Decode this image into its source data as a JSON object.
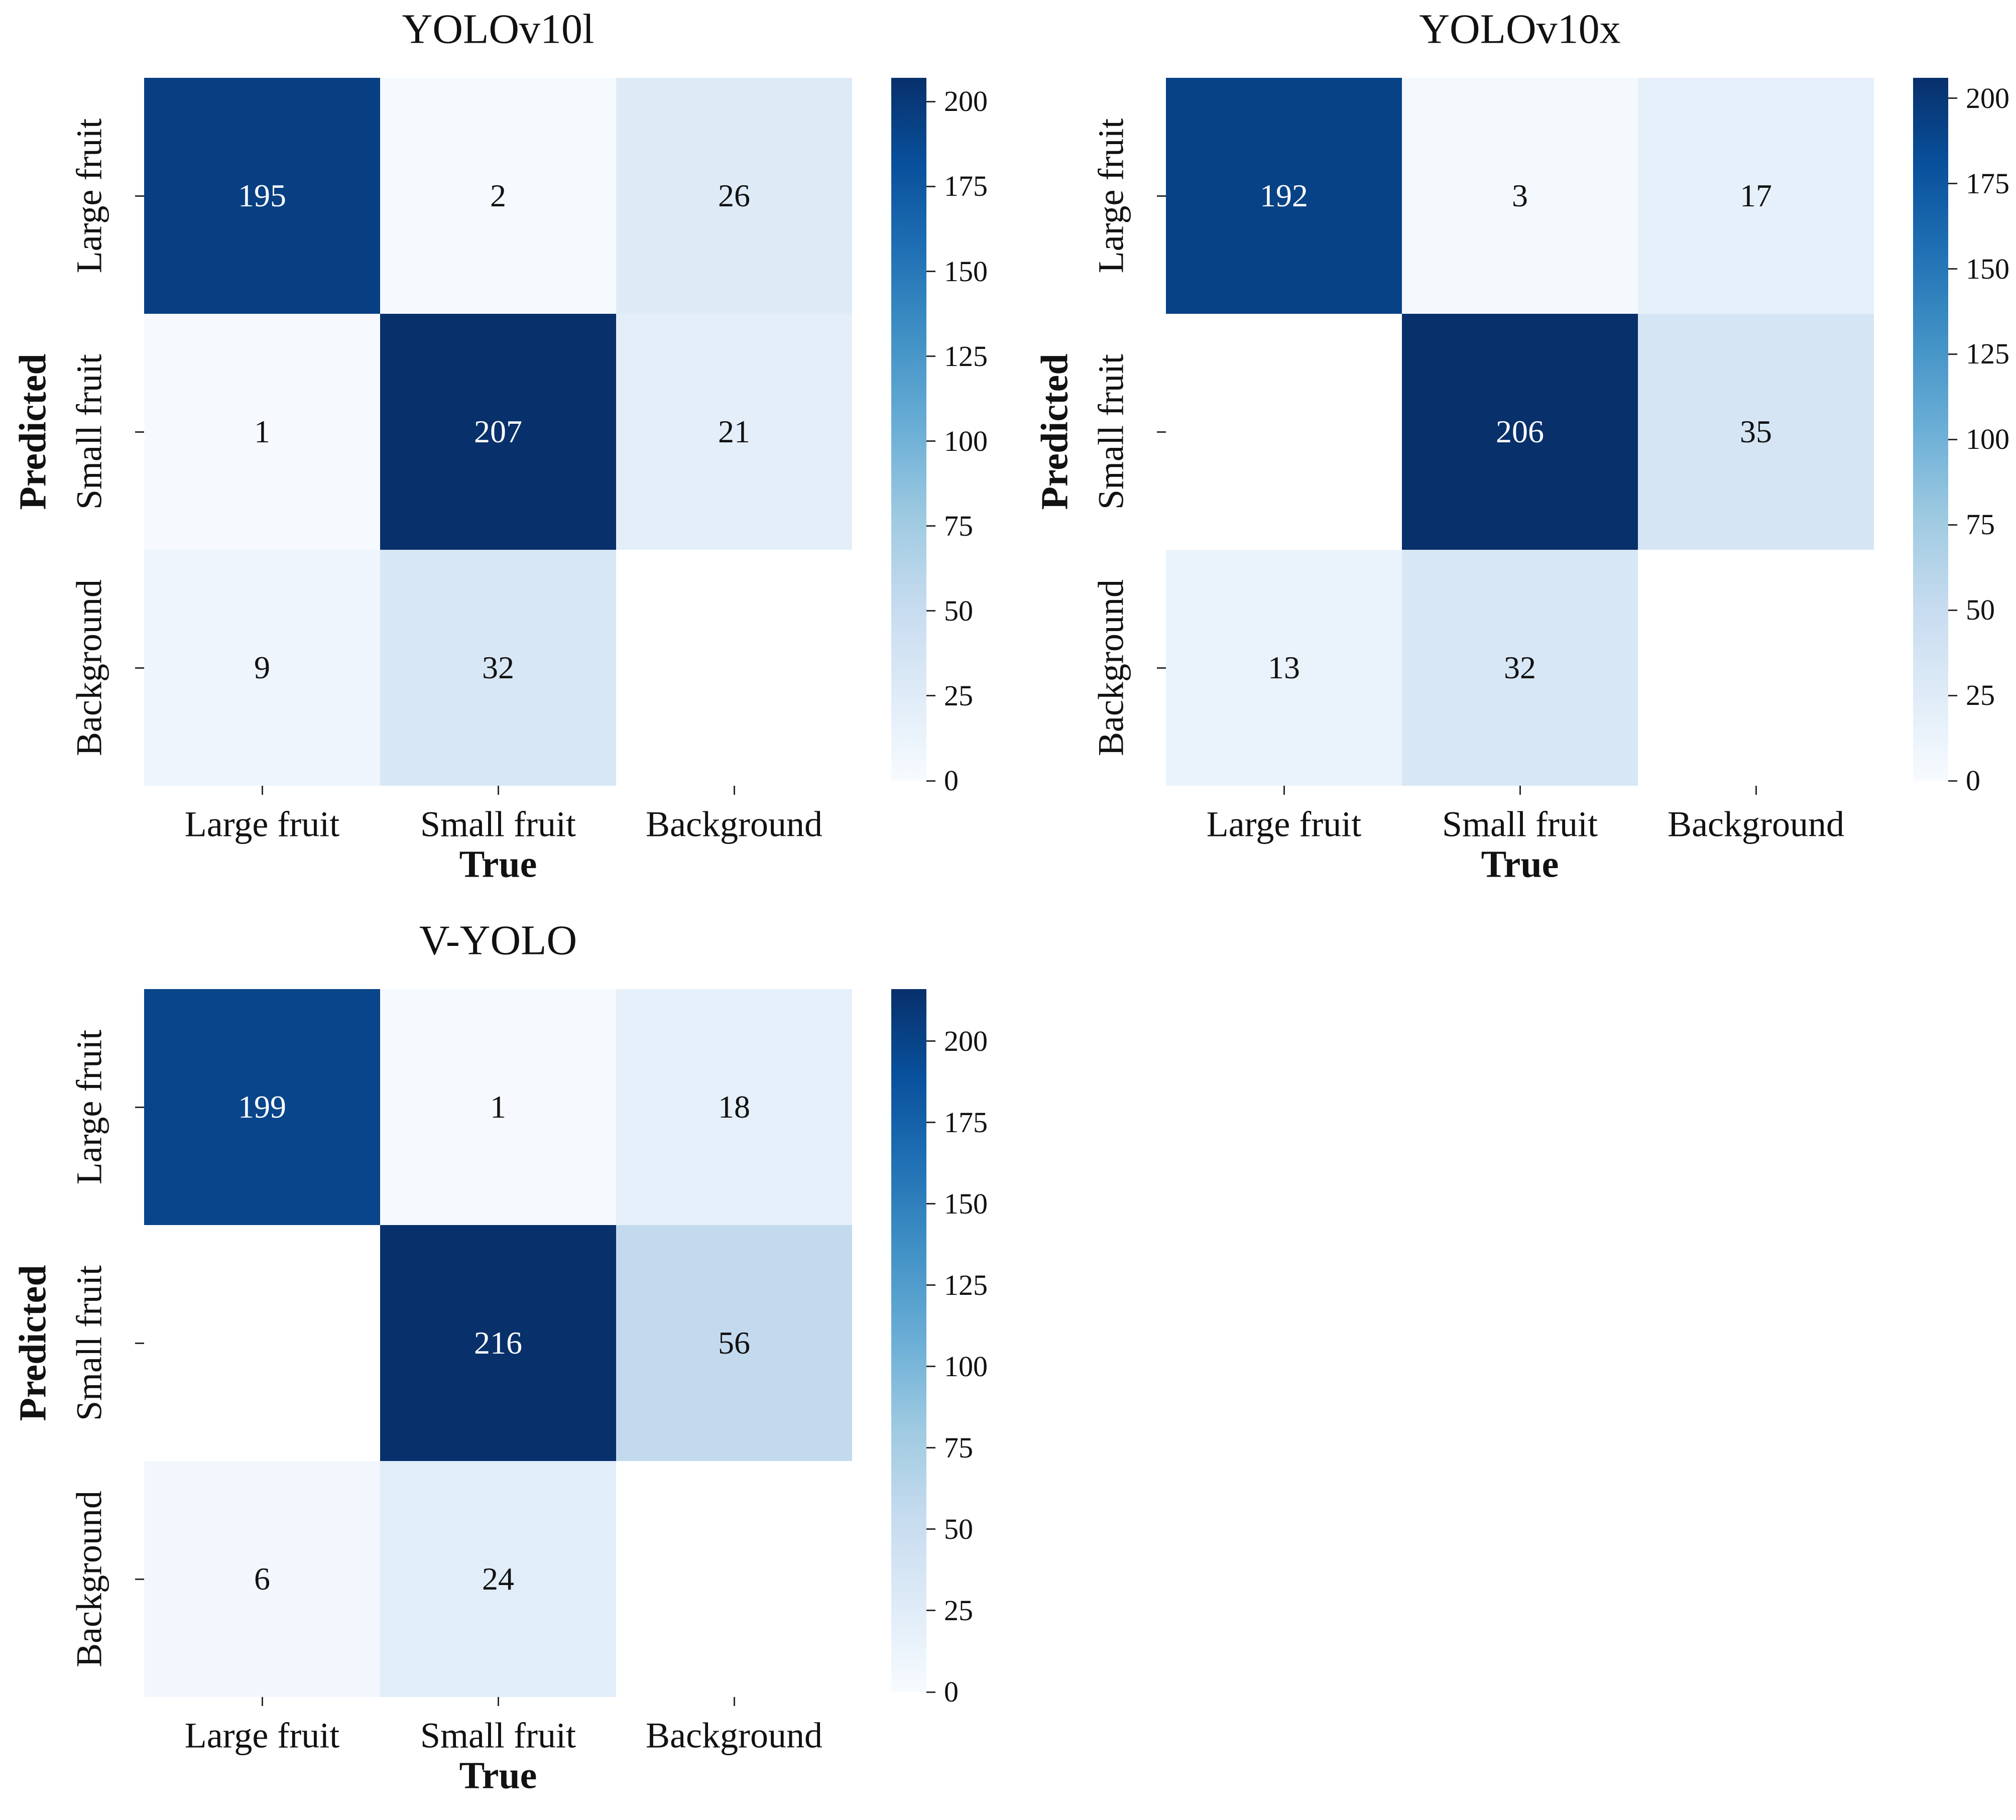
{
  "figure": {
    "background": "#ffffff",
    "text_color": "#111111",
    "dark_cell_text_color": "#ffffff",
    "blank_cell_color": "#ffffff",
    "colormap_name": "Blues",
    "colormap_anchors": [
      "#f7fbff",
      "#deebf7",
      "#c6dbef",
      "#9ecae1",
      "#6baed6",
      "#4292c6",
      "#2171b5",
      "#08519c",
      "#08306b"
    ]
  },
  "axis": {
    "x_label": "True",
    "y_label": "Predicted"
  },
  "categories": [
    "Large fruit",
    "Small fruit",
    "Background"
  ],
  "colorbar_ticks": [
    0,
    25,
    50,
    75,
    100,
    125,
    150,
    175,
    200
  ],
  "chart_data": [
    {
      "type": "heatmap",
      "title": "YOLOv10l",
      "x": [
        "Large fruit",
        "Small fruit",
        "Background"
      ],
      "y": [
        "Large fruit",
        "Small fruit",
        "Background"
      ],
      "xlabel": "True",
      "ylabel": "Predicted",
      "values": [
        [
          195,
          2,
          26
        ],
        [
          1,
          207,
          21
        ],
        [
          9,
          32,
          null
        ]
      ],
      "vmin": 0,
      "vmax": 207,
      "colorbar_ticks": [
        0,
        25,
        50,
        75,
        100,
        125,
        150,
        175,
        200
      ],
      "legend_position": "right"
    },
    {
      "type": "heatmap",
      "title": "YOLOv10x",
      "x": [
        "Large fruit",
        "Small fruit",
        "Background"
      ],
      "y": [
        "Large fruit",
        "Small fruit",
        "Background"
      ],
      "xlabel": "True",
      "ylabel": "Predicted",
      "values": [
        [
          192,
          3,
          17
        ],
        [
          null,
          206,
          35
        ],
        [
          13,
          32,
          null
        ]
      ],
      "vmin": 0,
      "vmax": 206,
      "colorbar_ticks": [
        0,
        25,
        50,
        75,
        100,
        125,
        150,
        175,
        200
      ],
      "legend_position": "right"
    },
    {
      "type": "heatmap",
      "title": "V-YOLO",
      "x": [
        "Large fruit",
        "Small fruit",
        "Background"
      ],
      "y": [
        "Large fruit",
        "Small fruit",
        "Background"
      ],
      "xlabel": "True",
      "ylabel": "Predicted",
      "values": [
        [
          199,
          1,
          18
        ],
        [
          null,
          216,
          56
        ],
        [
          6,
          24,
          null
        ]
      ],
      "vmin": 0,
      "vmax": 216,
      "colorbar_ticks": [
        0,
        25,
        50,
        75,
        100,
        125,
        150,
        175,
        200
      ],
      "legend_position": "right"
    }
  ]
}
